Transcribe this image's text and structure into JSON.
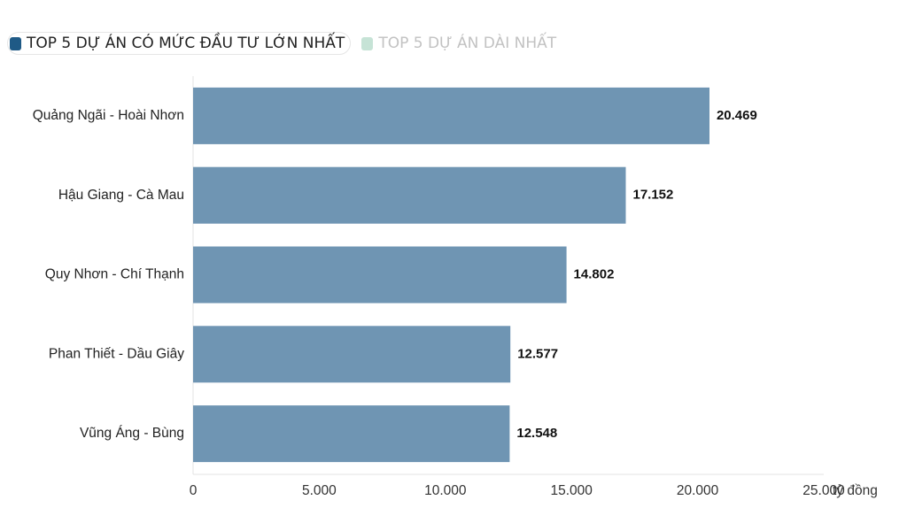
{
  "legend": {
    "items": [
      {
        "label": "TOP 5 DỰ ÁN CÓ MỨC ĐẦU TƯ LỚN NHẤT",
        "color": "#1f5a86",
        "active": true
      },
      {
        "label": "TOP 5 DỰ ÁN DÀI NHẤT",
        "color": "#c6e3d6",
        "active": false
      }
    ]
  },
  "chart_data": {
    "type": "bar",
    "orientation": "horizontal",
    "categories": [
      "Quảng Ngãi - Hoài Nhơn",
      "Hậu Giang - Cà Mau",
      "Quy Nhơn - Chí Thạnh",
      "Phan Thiết - Dầu Giây",
      "Vũng Áng - Bùng"
    ],
    "values": [
      20469,
      17152,
      14802,
      12577,
      12548
    ],
    "value_labels": [
      "20.469",
      "17.152",
      "14.802",
      "12.577",
      "12.548"
    ],
    "xlim": [
      0,
      25000
    ],
    "xticks": [
      0,
      5000,
      10000,
      15000,
      20000,
      25000
    ],
    "xtick_labels": [
      "0",
      "5.000",
      "10.000",
      "15.000",
      "20.000",
      "25.000"
    ],
    "xunit": "tỷ đồng",
    "bar_color": "#6f95b3",
    "grid": false
  }
}
